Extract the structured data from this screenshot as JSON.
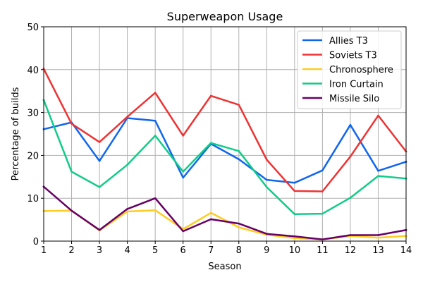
{
  "chart_data": {
    "type": "line",
    "title": "Superweapon Usage",
    "xlabel": "Season",
    "ylabel": "Percentage of builds",
    "x": [
      1,
      2,
      3,
      4,
      5,
      6,
      7,
      8,
      9,
      10,
      11,
      12,
      13,
      14
    ],
    "xlim": [
      1,
      14
    ],
    "ylim": [
      0,
      50
    ],
    "yticks": [
      0,
      10,
      20,
      30,
      40,
      50
    ],
    "grid": true,
    "legend_position": "top-right",
    "series": [
      {
        "name": "Allies T3",
        "color": "#1166ee",
        "values": [
          26.1,
          27.7,
          18.7,
          28.7,
          28.1,
          14.8,
          22.7,
          19.1,
          14.3,
          13.6,
          16.5,
          27.1,
          16.4,
          18.5
        ]
      },
      {
        "name": "Soviets T3",
        "color": "#ee3333",
        "values": [
          40.2,
          27.4,
          23.1,
          29.0,
          34.6,
          24.6,
          33.9,
          31.8,
          19.0,
          11.7,
          11.6,
          19.7,
          29.3,
          20.9
        ]
      },
      {
        "name": "Chronosphere",
        "color": "#ffcc22",
        "values": [
          7.0,
          7.1,
          2.5,
          6.9,
          7.2,
          2.8,
          6.6,
          3.2,
          1.5,
          0.7,
          0.4,
          1.2,
          0.8,
          1.2
        ]
      },
      {
        "name": "Iron Curtain",
        "color": "#11cc88",
        "values": [
          32.9,
          16.2,
          12.6,
          17.8,
          24.6,
          16.2,
          22.9,
          21.0,
          12.6,
          6.3,
          6.4,
          10.1,
          15.2,
          14.6
        ]
      },
      {
        "name": "Missile Silo",
        "color": "#660066",
        "values": [
          12.7,
          7.1,
          2.6,
          7.5,
          10.0,
          2.3,
          5.1,
          4.1,
          1.7,
          1.1,
          0.4,
          1.4,
          1.4,
          2.6
        ]
      }
    ]
  }
}
